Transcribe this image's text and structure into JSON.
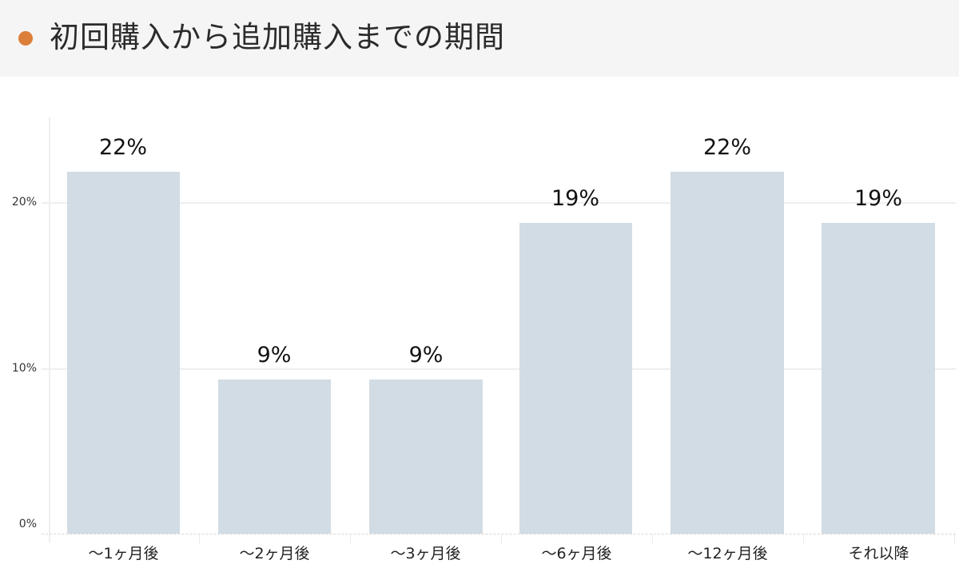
{
  "header": {
    "title": "初回購入から追加購入までの期間",
    "bullet_color": "#dc7f3a"
  },
  "chart_data": {
    "type": "bar",
    "title": "初回購入から追加購入までの期間",
    "xlabel": "",
    "ylabel": "",
    "categories": [
      "〜1ヶ月後",
      "〜2ヶ月後",
      "〜3ヶ月後",
      "〜6ヶ月後",
      "〜12ヶ月後",
      "それ以降"
    ],
    "values": [
      21.9,
      9.3,
      9.3,
      18.8,
      21.9,
      18.8
    ],
    "value_labels": [
      "22%",
      "9%",
      "9%",
      "19%",
      "22%",
      "19%"
    ],
    "ylim": [
      0,
      25
    ],
    "yticks": [
      0,
      10,
      20
    ],
    "ytick_labels": [
      "0%",
      "10%",
      "20%"
    ],
    "grid": true,
    "legend": null,
    "bar_color": "#d2dce4"
  }
}
